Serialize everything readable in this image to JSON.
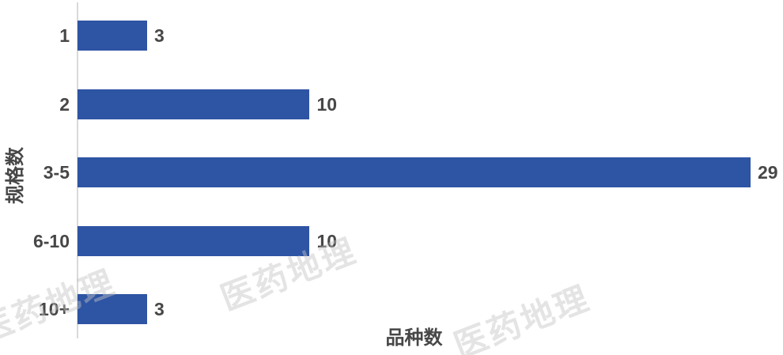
{
  "chart_data": {
    "type": "bar",
    "orientation": "horizontal",
    "title": "",
    "categories": [
      "1",
      "2",
      "3-5",
      "6-10",
      "10+"
    ],
    "values": [
      3,
      10,
      29,
      10,
      3
    ],
    "value_labels": [
      "3",
      "10",
      "29",
      "10",
      "3"
    ],
    "xlabel": "品种数",
    "ylabel": "规格数",
    "xlim": [
      0,
      29
    ],
    "grid": false,
    "legend": false,
    "bar_color": "#2e54a4",
    "axis_line_color": "#d9d9d9",
    "text_color": "#474747"
  },
  "watermark": {
    "text": "医药地理",
    "color": "rgba(195,195,195,0.45)"
  }
}
